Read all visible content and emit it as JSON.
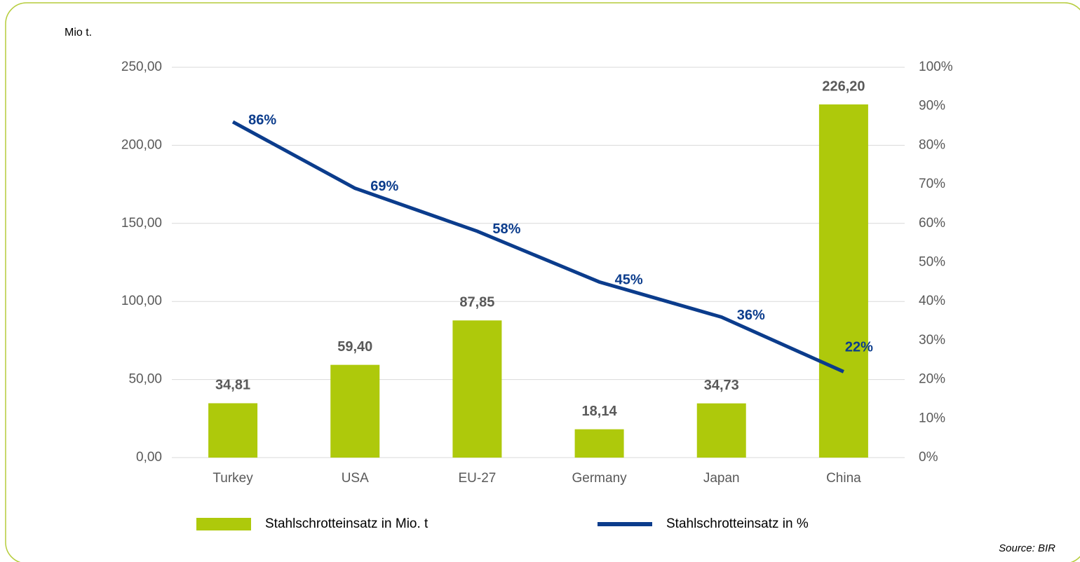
{
  "chart_data": {
    "type": "bar+line",
    "y_label": "Mio t.",
    "source": "Source: BIR",
    "categories": [
      "Turkey",
      "USA",
      "EU-27",
      "Germany",
      "Japan",
      "China"
    ],
    "series": [
      {
        "name": "Stahlschrotteinsatz in Mio. t",
        "type": "bar",
        "color": "#aec90b",
        "axis": "y",
        "values": [
          34.81,
          59.4,
          87.85,
          18.14,
          34.73,
          226.2
        ],
        "value_labels": [
          "34,81",
          "59,40",
          "87,85",
          "18,14",
          "34,73",
          "226,20"
        ]
      },
      {
        "name": "Stahlschrotteinsatz in %",
        "type": "line",
        "color": "#0b3c8c",
        "axis": "y2",
        "values": [
          86,
          69,
          58,
          45,
          36,
          22
        ],
        "value_labels": [
          "86%",
          "69%",
          "58%",
          "45%",
          "36%",
          "22%"
        ]
      }
    ],
    "ylim": [
      0,
      250
    ],
    "yticks": [
      {
        "value": 0,
        "label": "0,00"
      },
      {
        "value": 50,
        "label": "50,00"
      },
      {
        "value": 100,
        "label": "100,00"
      },
      {
        "value": 150,
        "label": "150,00"
      },
      {
        "value": 200,
        "label": "200,00"
      },
      {
        "value": 250,
        "label": "250,00"
      }
    ],
    "y2lim": [
      0,
      100
    ],
    "y2ticks": [
      {
        "value": 0,
        "label": "0%"
      },
      {
        "value": 10,
        "label": "10%"
      },
      {
        "value": 20,
        "label": "20%"
      },
      {
        "value": 30,
        "label": "30%"
      },
      {
        "value": 40,
        "label": "40%"
      },
      {
        "value": 50,
        "label": "50%"
      },
      {
        "value": 60,
        "label": "60%"
      },
      {
        "value": 70,
        "label": "70%"
      },
      {
        "value": 80,
        "label": "80%"
      },
      {
        "value": 90,
        "label": "90%"
      },
      {
        "value": 100,
        "label": "100%"
      }
    ],
    "grid": true,
    "legend": "bottom"
  }
}
